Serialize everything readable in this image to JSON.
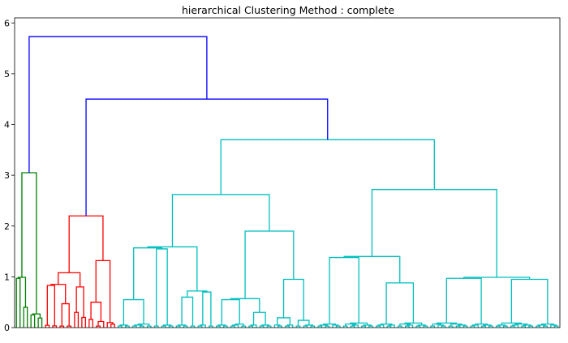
{
  "chart_data": {
    "type": "dendrogram",
    "title": "hierarchical Clustering Method : complete",
    "xlabel": "",
    "ylabel": "",
    "ylim": [
      0,
      6.1
    ],
    "yticks": [
      0,
      1,
      2,
      3,
      4,
      5,
      6
    ],
    "leaf_count": 150,
    "grid": false,
    "colors": {
      "above_threshold": "#0000ff",
      "cluster_1": "#008000",
      "cluster_2": "#ff0000",
      "cluster_3": "#00bfbf",
      "axis": "#000000"
    },
    "clusters": [
      {
        "color_key": "cluster_1",
        "leaves": 8,
        "merge_height": 3.05,
        "sub_heights": [
          0.75,
          0.1,
          0.97,
          0.4,
          0.25
        ]
      },
      {
        "color_key": "cluster_2",
        "leaves": 20,
        "merge_height": 2.2,
        "sub_heights": [
          1.08,
          1.32,
          0.25,
          0.8,
          0.5,
          0.1,
          0.83,
          0.47,
          0.3,
          0.2
        ]
      },
      {
        "color_key": "cluster_3",
        "leaves": 122,
        "merge_height": 3.7,
        "sub_heights": [
          2.62,
          2.72,
          1.43,
          1.9,
          1.12,
          0.93,
          0.63,
          0.5,
          0.55,
          0.95,
          1.38,
          0.88,
          0.97,
          0.95,
          0.55,
          1.55,
          0.6,
          0.7,
          0.55,
          0.3
        ]
      }
    ],
    "top_links": [
      {
        "height": 4.5,
        "joins": [
          "cluster_2",
          "cluster_3"
        ]
      },
      {
        "height": 5.73,
        "joins": [
          "cluster_1",
          "cluster_2+cluster_3"
        ]
      }
    ]
  }
}
